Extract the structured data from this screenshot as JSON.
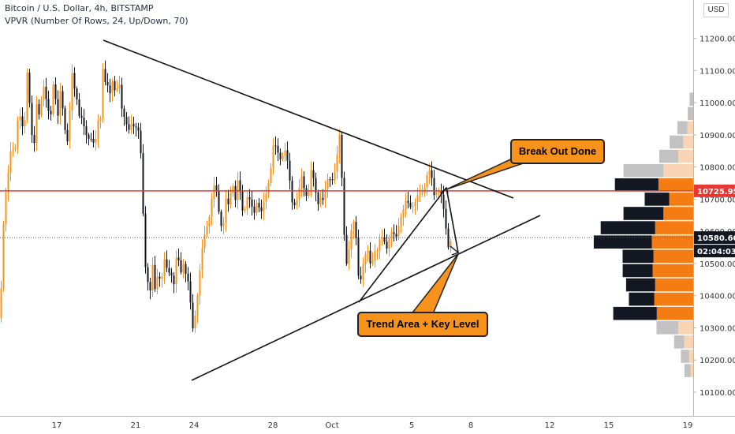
{
  "header": {
    "symbol_line": "Bitcoin / U.S. Dollar, 4h, BITSTAMP",
    "indicator_line": "VPVR (Number Of Rows, 24, Up/Down, 70)"
  },
  "scale_button": "USD",
  "annotations": {
    "breakout_label": "Break Out Done",
    "trend_label": "Trend Area + Key Level"
  },
  "colors": {
    "up_candle": "#f7931a",
    "down_candle": "#131722",
    "resistance_line": "#e53935",
    "vp_up": "#f57c12",
    "vp_down": "#131722",
    "vp_up_outside": "#f9d4b4",
    "vp_down_outside": "#c2c2c2"
  },
  "chart_data": {
    "type": "candlestick",
    "title": "Bitcoin / U.S. Dollar, 4h, BITSTAMP",
    "y_axis": {
      "ticks": [
        "11200.00",
        "11100.00",
        "11000.00",
        "10900.00",
        "10800.00",
        "10700.00",
        "10600.00",
        "10500.00",
        "10400.00",
        "10300.00",
        "10200.00",
        "10100.00"
      ],
      "range": [
        10040,
        11360
      ]
    },
    "x_axis": {
      "ticks": [
        "17",
        "21",
        "24",
        "28",
        "Oct",
        "5",
        "8",
        "12",
        "15",
        "19"
      ]
    },
    "price_labels": [
      {
        "name": "resistance",
        "value": 10725.95,
        "text": "10725.95"
      },
      {
        "name": "last-price",
        "value": 10580.6,
        "text": "10580.60"
      },
      {
        "name": "countdown",
        "value": 10530,
        "text": "02:04:03"
      }
    ],
    "price_path": [
      [
        0,
        10330
      ],
      [
        3,
        10560
      ],
      [
        6,
        10700
      ],
      [
        10,
        10800
      ],
      [
        14,
        10880
      ],
      [
        18,
        10810
      ],
      [
        22,
        10940
      ],
      [
        26,
        10980
      ],
      [
        30,
        10900
      ],
      [
        34,
        11080
      ],
      [
        38,
        10960
      ],
      [
        42,
        10850
      ],
      [
        46,
        11000
      ],
      [
        50,
        10940
      ],
      [
        54,
        11060
      ],
      [
        58,
        11020
      ],
      [
        61,
        10980
      ],
      [
        64,
        10960
      ],
      [
        68,
        11080
      ],
      [
        72,
        10940
      ],
      [
        76,
        11040
      ],
      [
        80,
        10960
      ],
      [
        84,
        10860
      ],
      [
        86,
        10900
      ],
      [
        88,
        10980
      ],
      [
        90,
        11130
      ],
      [
        92,
        11060
      ],
      [
        96,
        11020
      ],
      [
        100,
        10960
      ],
      [
        104,
        10960
      ],
      [
        108,
        10900
      ],
      [
        112,
        10880
      ],
      [
        116,
        10890
      ],
      [
        120,
        10880
      ],
      [
        124,
        10940
      ],
      [
        128,
        10940
      ],
      [
        131,
        11180
      ],
      [
        134,
        11020
      ],
      [
        137,
        11090
      ],
      [
        140,
        11000
      ],
      [
        143,
        11080
      ],
      [
        146,
        11000
      ],
      [
        150,
        11100
      ],
      [
        154,
        10990
      ],
      [
        158,
        10930
      ],
      [
        162,
        10900
      ],
      [
        166,
        10950
      ],
      [
        170,
        10940
      ],
      [
        174,
        10900
      ],
      [
        177,
        10880
      ],
      [
        180,
        10730
      ],
      [
        182,
        10600
      ],
      [
        184,
        10510
      ],
      [
        186,
        10470
      ],
      [
        188,
        10430
      ],
      [
        190,
        10400
      ],
      [
        192,
        10450
      ],
      [
        194,
        10500
      ],
      [
        196,
        10420
      ],
      [
        200,
        10500
      ],
      [
        204,
        10440
      ],
      [
        208,
        10490
      ],
      [
        212,
        10470
      ],
      [
        216,
        10500
      ],
      [
        220,
        10440
      ],
      [
        224,
        10520
      ],
      [
        228,
        10460
      ],
      [
        232,
        10520
      ],
      [
        236,
        10470
      ],
      [
        240,
        10400
      ],
      [
        243,
        10270
      ],
      [
        246,
        10330
      ],
      [
        250,
        10420
      ],
      [
        254,
        10500
      ],
      [
        258,
        10560
      ],
      [
        262,
        10620
      ],
      [
        266,
        10680
      ],
      [
        270,
        10740
      ],
      [
        274,
        10710
      ],
      [
        278,
        10640
      ],
      [
        282,
        10620
      ],
      [
        286,
        10700
      ],
      [
        290,
        10660
      ],
      [
        294,
        10760
      ],
      [
        298,
        10710
      ],
      [
        302,
        10780
      ],
      [
        306,
        10650
      ],
      [
        310,
        10670
      ],
      [
        314,
        10730
      ],
      [
        318,
        10680
      ],
      [
        322,
        10650
      ],
      [
        326,
        10700
      ],
      [
        330,
        10660
      ],
      [
        334,
        10690
      ],
      [
        338,
        10720
      ],
      [
        342,
        10780
      ],
      [
        346,
        10870
      ],
      [
        350,
        10860
      ],
      [
        354,
        10820
      ],
      [
        358,
        10840
      ],
      [
        362,
        10860
      ],
      [
        366,
        10770
      ],
      [
        370,
        10690
      ],
      [
        374,
        10690
      ],
      [
        378,
        10720
      ],
      [
        382,
        10760
      ],
      [
        386,
        10720
      ],
      [
        390,
        10720
      ],
      [
        394,
        10790
      ],
      [
        398,
        10740
      ],
      [
        402,
        10680
      ],
      [
        406,
        10720
      ],
      [
        410,
        10700
      ],
      [
        414,
        10740
      ],
      [
        418,
        10760
      ],
      [
        422,
        10780
      ],
      [
        426,
        10820
      ],
      [
        430,
        10880
      ],
      [
        432,
        10830
      ],
      [
        434,
        10680
      ],
      [
        436,
        10600
      ],
      [
        438,
        10540
      ],
      [
        440,
        10500
      ],
      [
        442,
        10550
      ],
      [
        444,
        10580
      ],
      [
        448,
        10610
      ],
      [
        452,
        10570
      ],
      [
        455,
        10440
      ],
      [
        458,
        10480
      ],
      [
        462,
        10500
      ],
      [
        466,
        10530
      ],
      [
        470,
        10510
      ],
      [
        474,
        10550
      ],
      [
        478,
        10520
      ],
      [
        482,
        10570
      ],
      [
        486,
        10600
      ],
      [
        490,
        10560
      ],
      [
        494,
        10570
      ],
      [
        498,
        10580
      ],
      [
        502,
        10600
      ],
      [
        506,
        10650
      ],
      [
        510,
        10640
      ],
      [
        514,
        10680
      ],
      [
        518,
        10700
      ],
      [
        522,
        10690
      ],
      [
        526,
        10680
      ],
      [
        530,
        10700
      ],
      [
        534,
        10730
      ],
      [
        538,
        10750
      ],
      [
        542,
        10780
      ],
      [
        546,
        10770
      ],
      [
        550,
        10720
      ],
      [
        554,
        10740
      ],
      [
        558,
        10720
      ],
      [
        562,
        10660
      ],
      [
        564,
        10640
      ],
      [
        566,
        10580
      ],
      [
        568,
        10560
      ],
      [
        570,
        10570
      ],
      [
        572,
        10580
      ]
    ],
    "volume_profile": {
      "rows": [
        {
          "up": 0,
          "down": 0,
          "in_range": false
        },
        {
          "up": 0,
          "down": 0,
          "in_range": false
        },
        {
          "up": 0,
          "down": 0,
          "in_range": false
        },
        {
          "up": 0,
          "down": 0,
          "in_range": false
        },
        {
          "up": 0,
          "down": 4,
          "in_range": false
        },
        {
          "up": 0,
          "down": 6,
          "in_range": false
        },
        {
          "up": 7,
          "down": 11,
          "in_range": false
        },
        {
          "up": 12,
          "down": 15,
          "in_range": false
        },
        {
          "up": 18,
          "down": 21,
          "in_range": false
        },
        {
          "up": 36,
          "down": 44,
          "in_range": false
        },
        {
          "up": 42,
          "down": 48,
          "in_range": true
        },
        {
          "up": 29,
          "down": 27,
          "in_range": true
        },
        {
          "up": 36,
          "down": 44,
          "in_range": true
        },
        {
          "up": 46,
          "down": 60,
          "in_range": true
        },
        {
          "up": 50,
          "down": 64,
          "in_range": true
        },
        {
          "up": 48,
          "down": 34,
          "in_range": true
        },
        {
          "up": 49,
          "down": 33,
          "in_range": true
        },
        {
          "up": 46,
          "down": 32,
          "in_range": true
        },
        {
          "up": 47,
          "down": 28,
          "in_range": true
        },
        {
          "up": 44,
          "down": 48,
          "in_range": true
        },
        {
          "up": 18,
          "down": 24,
          "in_range": false
        },
        {
          "up": 11,
          "down": 11,
          "in_range": false
        },
        {
          "up": 5,
          "down": 9,
          "in_range": false
        },
        {
          "up": 3,
          "down": 7,
          "in_range": false
        }
      ]
    },
    "drawings": [
      {
        "name": "upper-trendline",
        "from": [
          11188,
          0
        ],
        "to": [
          10690,
          1
        ]
      },
      {
        "name": "lower-trendline",
        "from": [
          10150,
          0
        ],
        "to": [
          10650,
          1
        ]
      },
      {
        "name": "inner-trendline",
        "from": [
          10390,
          0
        ],
        "to": [
          10740,
          1
        ]
      }
    ]
  }
}
